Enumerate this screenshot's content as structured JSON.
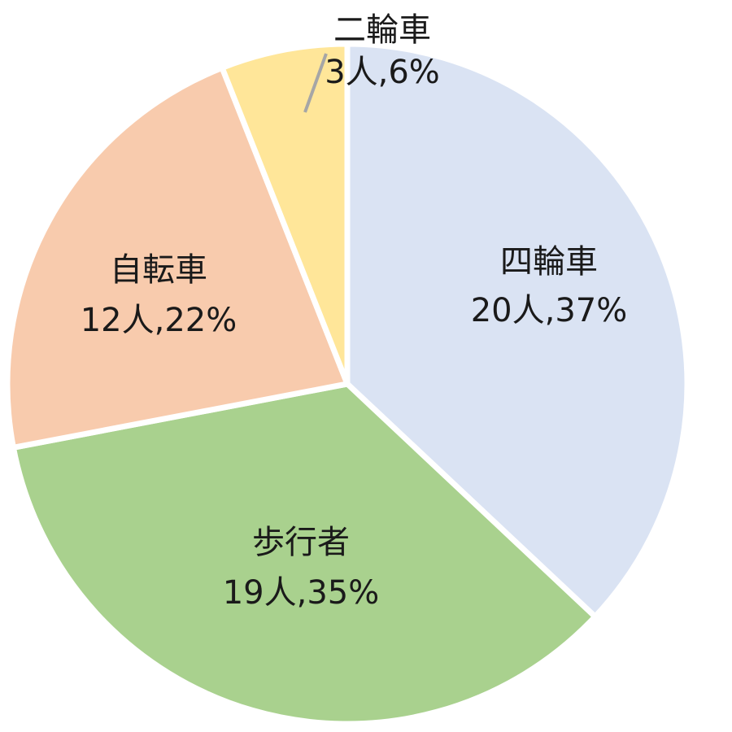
{
  "chart_data": {
    "type": "pie",
    "title": "",
    "slices": [
      {
        "name": "四輪車",
        "count": 20,
        "count_label": "20人",
        "percent": 37,
        "percent_label": "37%",
        "color": "#DAE3F3"
      },
      {
        "name": "歩行者",
        "count": 19,
        "count_label": "19人",
        "percent": 35,
        "percent_label": "35%",
        "color": "#A9D18E"
      },
      {
        "name": "自転車",
        "count": 12,
        "count_label": "12人",
        "percent": 22,
        "percent_label": "22%",
        "color": "#F8CBAD"
      },
      {
        "name": "二輪車",
        "count": 3,
        "count_label": "3人",
        "percent": 6,
        "percent_label": "6%",
        "color": "#FFE699"
      }
    ],
    "start_angle_deg": 0,
    "direction": "clockwise",
    "legend": "none",
    "leader_line_color": "#A6A6A6"
  }
}
